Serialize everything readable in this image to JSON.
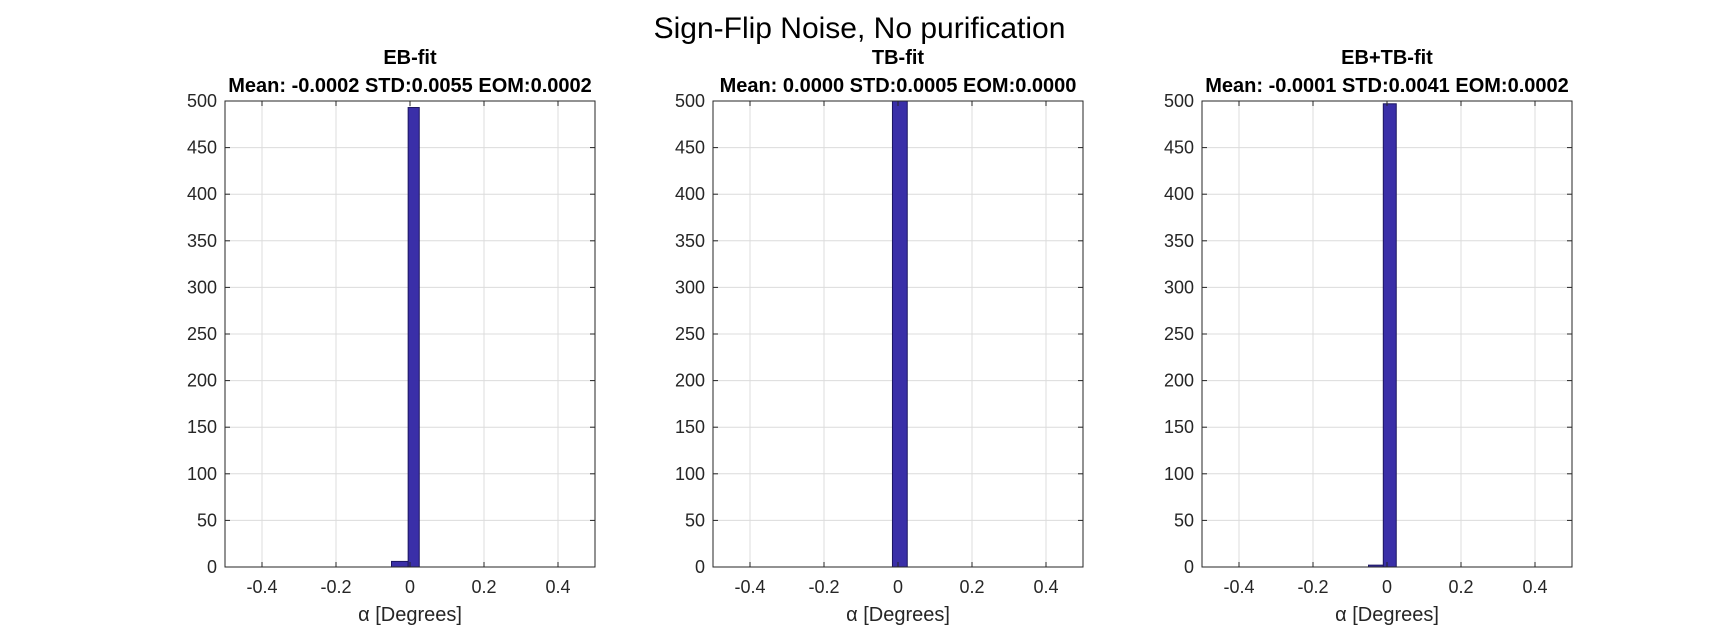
{
  "figure": {
    "title": "Sign-Flip Noise, No purification"
  },
  "chart_data": [
    {
      "type": "bar",
      "title": "EB-fit",
      "subtitle": "Mean: -0.0002 STD:0.0055 EOM:0.0002",
      "xlabel": "α [Degrees]",
      "ylabel": "",
      "xlim": [
        -0.5,
        0.5
      ],
      "ylim": [
        0,
        500
      ],
      "xticks": [
        -0.4,
        -0.2,
        0,
        0.2,
        0.4
      ],
      "xtick_labels": [
        "-0.4",
        "-0.2",
        "0",
        "0.2",
        "0.4"
      ],
      "yticks": [
        0,
        50,
        100,
        150,
        200,
        250,
        300,
        350,
        400,
        450,
        500
      ],
      "grid": true,
      "bars": [
        {
          "x0": -0.05,
          "x1": -0.025,
          "value": 2
        },
        {
          "x0": -0.05,
          "x1": -0.005,
          "value": 6
        },
        {
          "x0": -0.005,
          "x1": 0.025,
          "value": 493
        }
      ]
    },
    {
      "type": "bar",
      "title": "TB-fit",
      "subtitle": "Mean: 0.0000 STD:0.0005 EOM:0.0000",
      "xlabel": "α [Degrees]",
      "ylabel": "",
      "xlim": [
        -0.5,
        0.5
      ],
      "ylim": [
        0,
        500
      ],
      "xticks": [
        -0.4,
        -0.2,
        0,
        0.2,
        0.4
      ],
      "xtick_labels": [
        "-0.4",
        "-0.2",
        "0",
        "0.2",
        "0.4"
      ],
      "yticks": [
        0,
        50,
        100,
        150,
        200,
        250,
        300,
        350,
        400,
        450,
        500
      ],
      "grid": true,
      "bars": [
        {
          "x0": -0.015,
          "x1": 0.025,
          "value": 500
        }
      ]
    },
    {
      "type": "bar",
      "title": "EB+TB-fit",
      "subtitle": "Mean: -0.0001 STD:0.0041 EOM:0.0002",
      "xlabel": "α [Degrees]",
      "ylabel": "",
      "xlim": [
        -0.5,
        0.5
      ],
      "ylim": [
        0,
        500
      ],
      "xticks": [
        -0.4,
        -0.2,
        0,
        0.2,
        0.4
      ],
      "xtick_labels": [
        "-0.4",
        "-0.2",
        "0",
        "0.2",
        "0.4"
      ],
      "yticks": [
        0,
        50,
        100,
        150,
        200,
        250,
        300,
        350,
        400,
        450,
        500
      ],
      "grid": true,
      "bars": [
        {
          "x0": -0.05,
          "x1": -0.01,
          "value": 2
        },
        {
          "x0": -0.01,
          "x1": 0.025,
          "value": 497
        }
      ]
    }
  ],
  "colors": {
    "bar_fill": "#3a2fa8",
    "bar_edge": "#1c1660",
    "grid": "#dcdcdc",
    "axis": "#262626"
  }
}
